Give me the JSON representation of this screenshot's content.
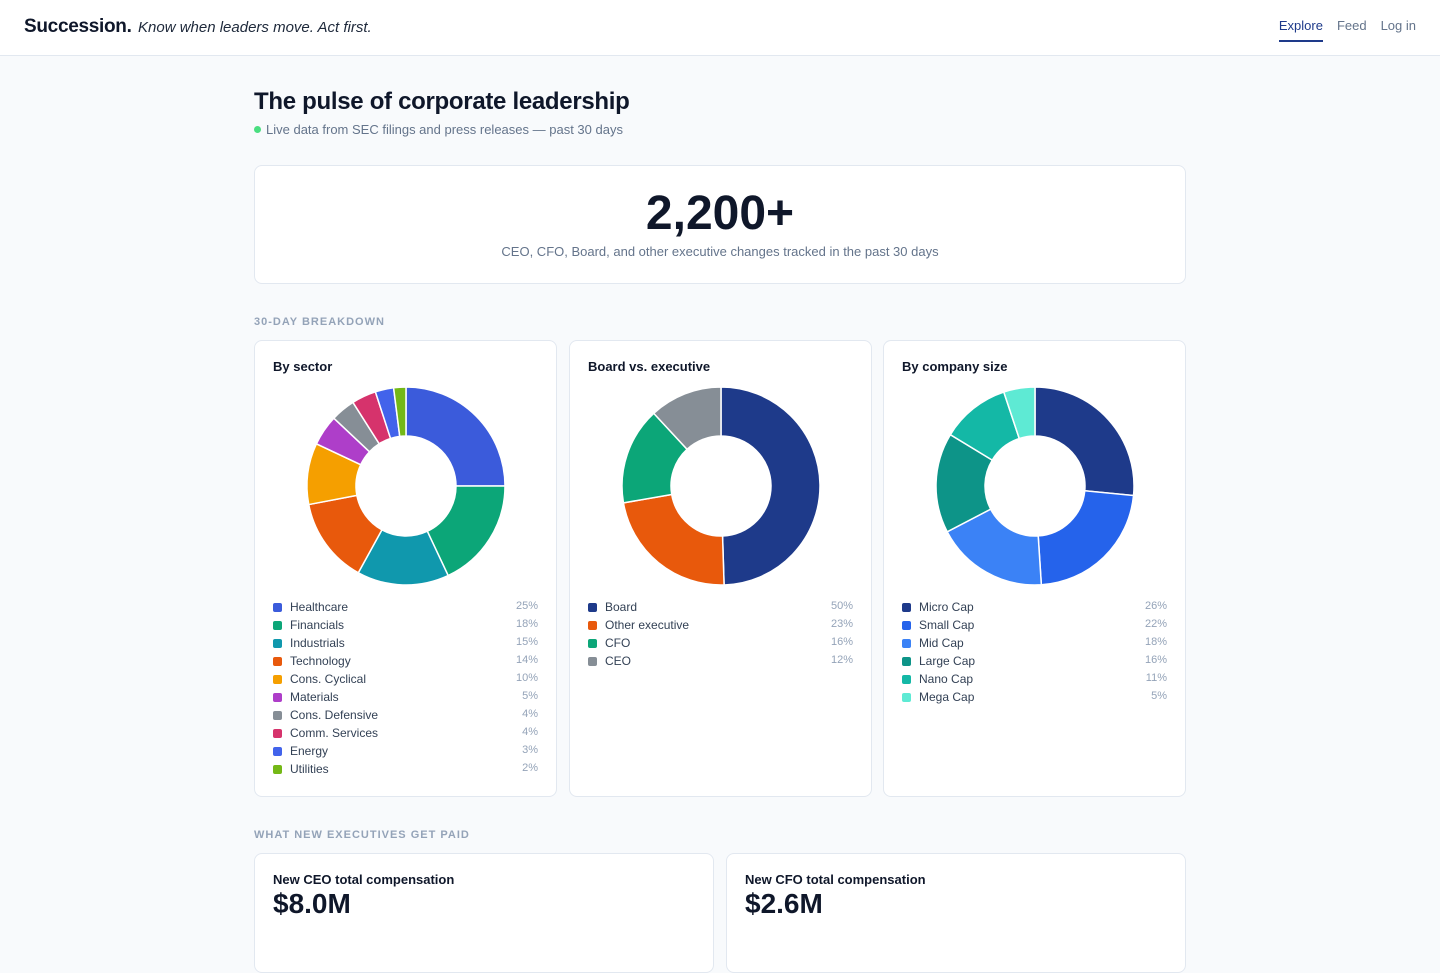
{
  "header": {
    "brand": "Succession.",
    "tagline": "Know when leaders move. Act first.",
    "nav": [
      "Explore",
      "Feed",
      "Log in"
    ]
  },
  "hero": {
    "title": "The pulse of corporate leadership",
    "subtitle": "Live data from SEC filings and press releases — past 30 days"
  },
  "stat": {
    "value": "2,200+",
    "caption": "CEO, CFO, Board, and other executive changes tracked in the past 30 days"
  },
  "breakdown_label": "30-DAY BREAKDOWN",
  "chart_data": [
    {
      "type": "pie",
      "title": "By sector",
      "categories": [
        "Healthcare",
        "Financials",
        "Industrials",
        "Technology",
        "Cons. Cyclical",
        "Materials",
        "Cons. Defensive",
        "Comm. Services",
        "Energy",
        "Utilities"
      ],
      "values": [
        25,
        18,
        15,
        14,
        10,
        5,
        4,
        4,
        3,
        2
      ],
      "value_labels": [
        "25%",
        "18%",
        "15%",
        "14%",
        "10%",
        "5%",
        "4%",
        "4%",
        "3%",
        "2%"
      ],
      "colors": [
        "#3b5bdb",
        "#0ca678",
        "#1098ad",
        "#e8590c",
        "#f59f00",
        "#ae3ec9",
        "#868e96",
        "#d6336c",
        "#4263eb",
        "#74b816"
      ]
    },
    {
      "type": "pie",
      "title": "Board vs. executive",
      "categories": [
        "Board",
        "Other executive",
        "CFO",
        "CEO"
      ],
      "values": [
        50,
        23,
        16,
        12
      ],
      "value_labels": [
        "50%",
        "23%",
        "16%",
        "12%"
      ],
      "colors": [
        "#1e3a8a",
        "#e8590c",
        "#0ca678",
        "#868e96"
      ]
    },
    {
      "type": "pie",
      "title": "By company size",
      "categories": [
        "Micro Cap",
        "Small Cap",
        "Mid Cap",
        "Large Cap",
        "Nano Cap",
        "Mega Cap"
      ],
      "values": [
        26,
        22,
        18,
        16,
        11,
        5
      ],
      "value_labels": [
        "26%",
        "22%",
        "18%",
        "16%",
        "11%",
        "5%"
      ],
      "colors": [
        "#1e3a8a",
        "#2563eb",
        "#3b82f6",
        "#0d9488",
        "#14b8a6",
        "#5eead4"
      ]
    }
  ],
  "pay_label": "WHAT NEW EXECUTIVES GET PAID",
  "pay_cards": [
    {
      "title": "New CEO total compensation",
      "value": "$8.0M"
    },
    {
      "title": "New CFO total compensation",
      "value": "$2.6M"
    }
  ]
}
